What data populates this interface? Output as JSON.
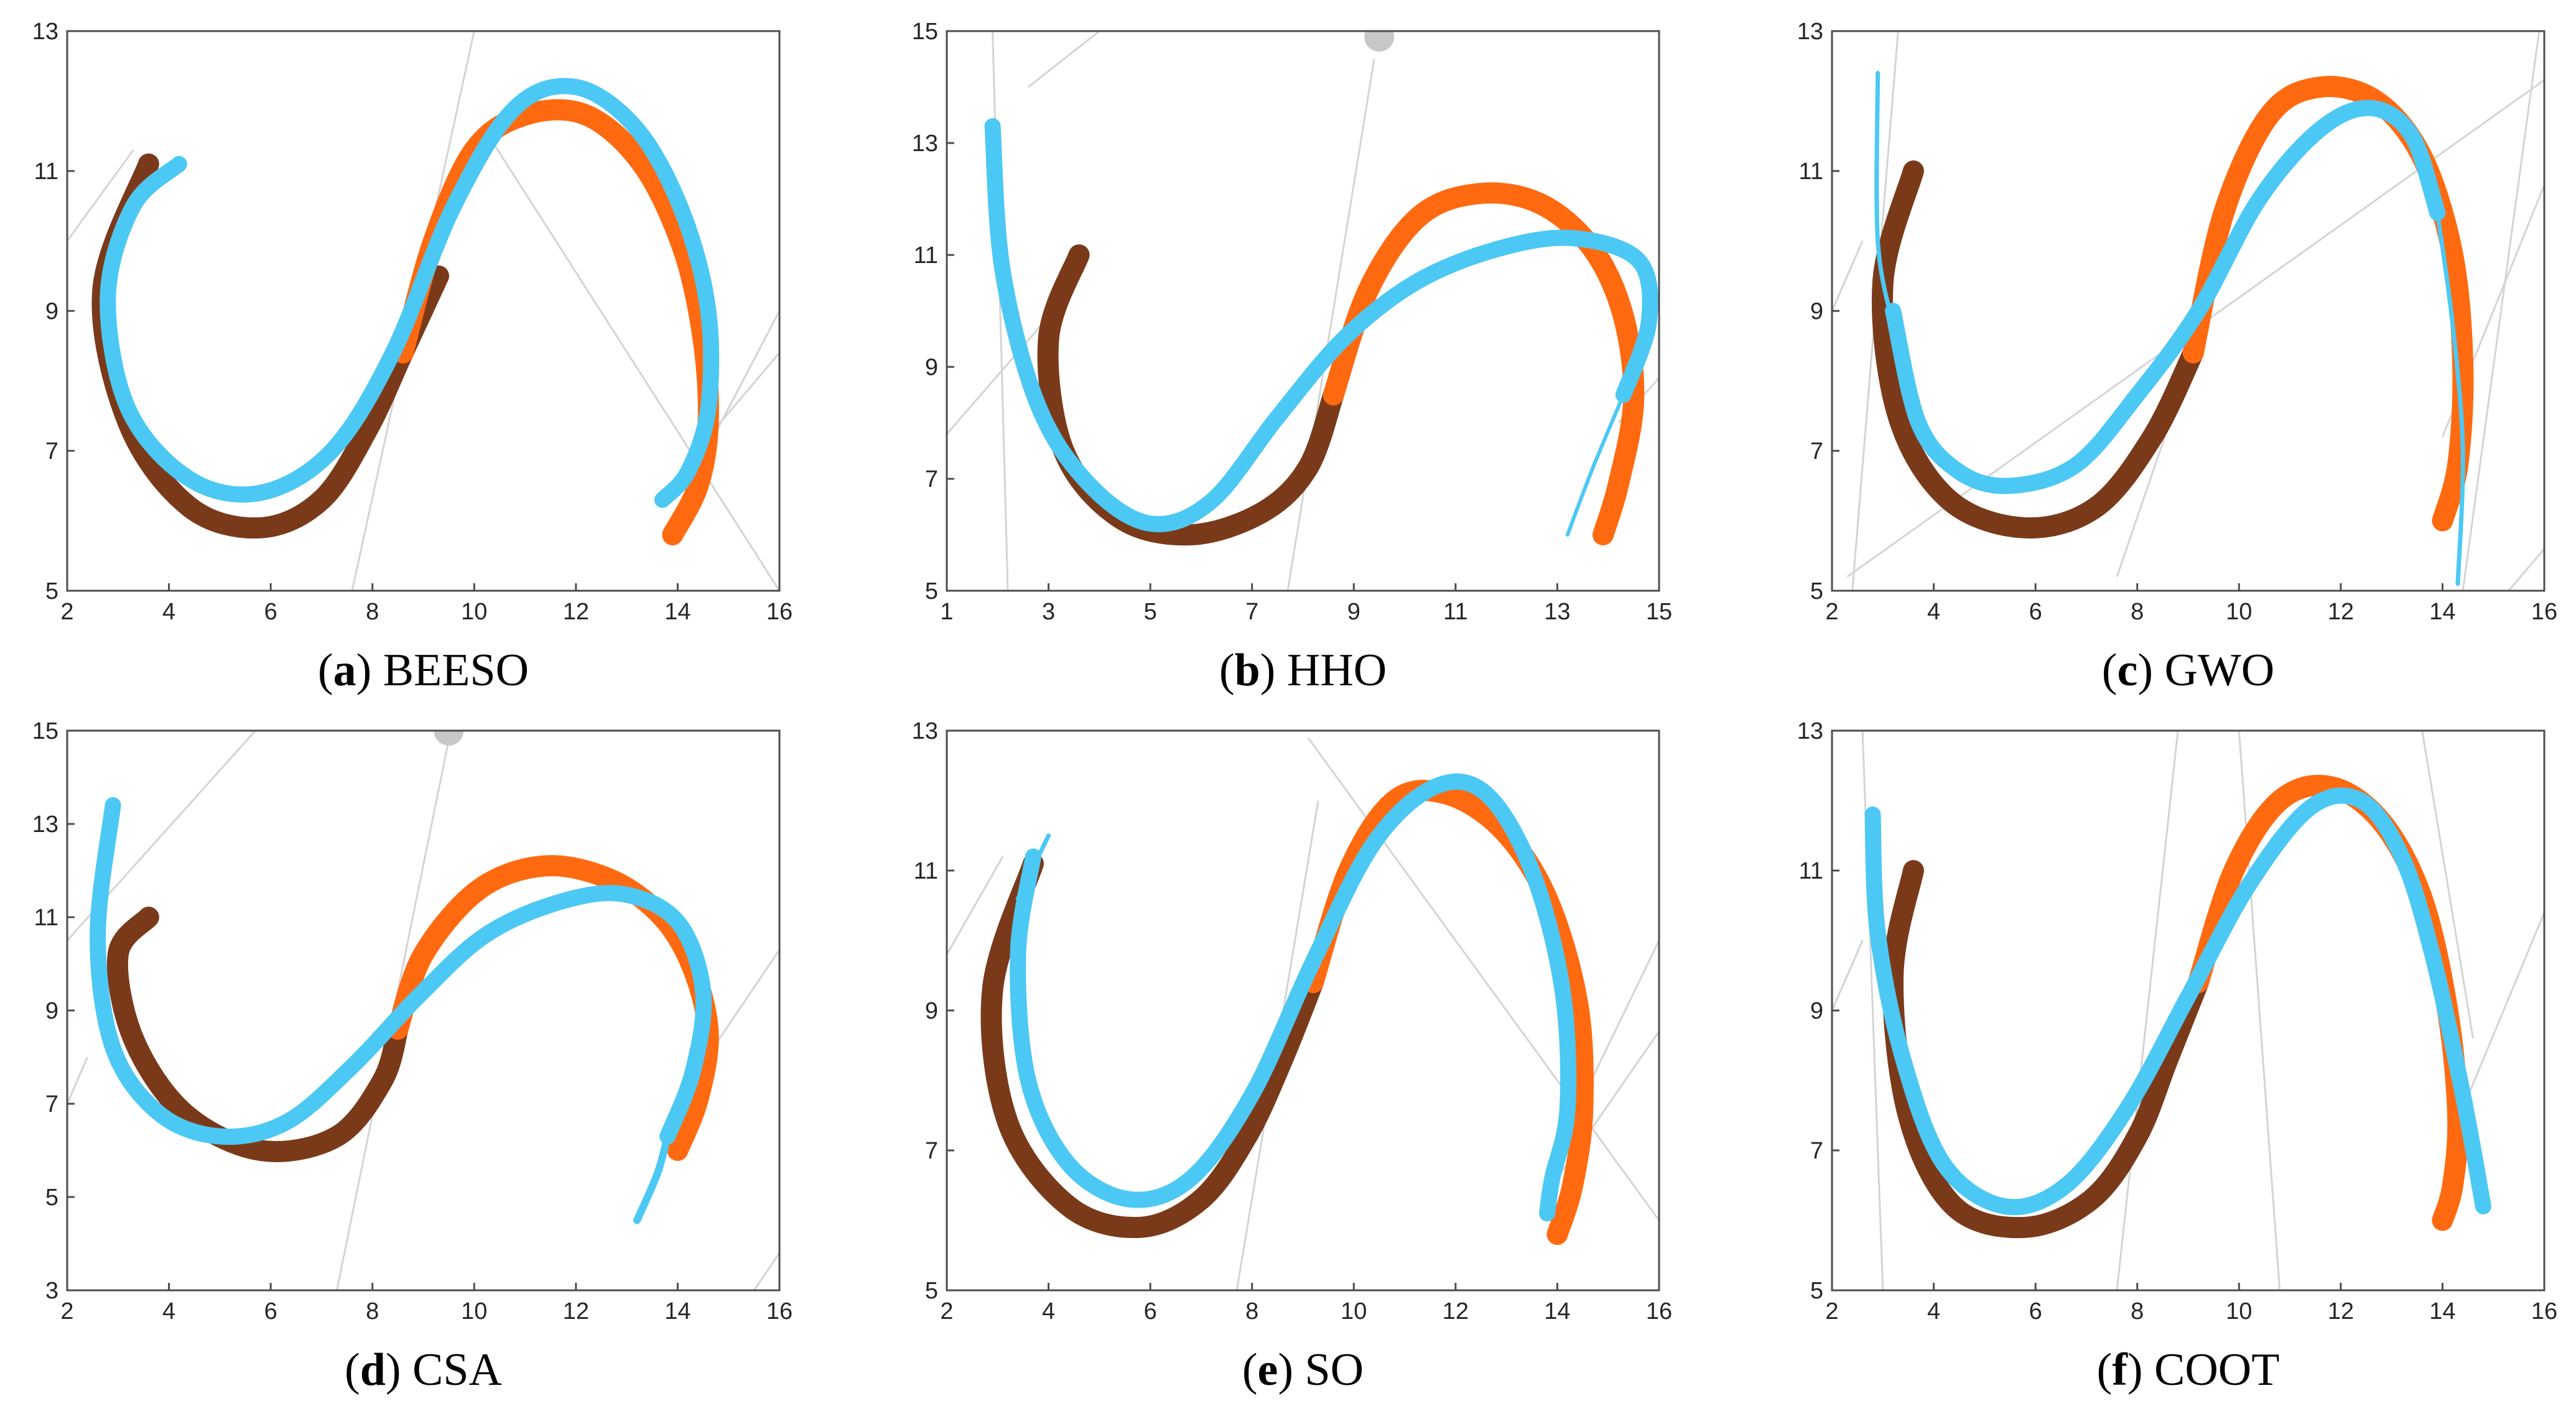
{
  "figure": {
    "colors": {
      "reference_dark": "#7a3a1a",
      "reference_light": "#ff6a10",
      "result": "#4cc8f4",
      "grey_lines": "#d4d4d4",
      "frame": "#4d4d4d"
    }
  },
  "chart_data": [
    {
      "id": "a",
      "type": "line",
      "caption_letter": "a",
      "caption_text": "BEESO",
      "xlim": [
        2,
        16
      ],
      "ylim": [
        5,
        13
      ],
      "xticks": [
        2,
        4,
        6,
        8,
        10,
        12,
        14,
        16
      ],
      "yticks": [
        5,
        7,
        9,
        11,
        13
      ],
      "series": [
        {
          "name": "reference-dark",
          "x": [
            3.6,
            2.7,
            3.2,
            4.4,
            5.8,
            7.0,
            7.9,
            8.6,
            9.3
          ],
          "y": [
            11.1,
            9.3,
            7.4,
            6.2,
            5.9,
            6.3,
            7.3,
            8.4,
            9.5
          ]
        },
        {
          "name": "reference-light",
          "x": [
            8.6,
            9.2,
            10.0,
            11.0,
            12.2,
            13.3,
            14.1,
            14.5,
            14.6,
            14.4,
            13.9
          ],
          "y": [
            8.4,
            10.0,
            11.3,
            11.8,
            11.8,
            11.1,
            9.9,
            8.6,
            7.4,
            6.5,
            5.8
          ]
        },
        {
          "name": "result",
          "x": [
            4.2,
            3.3,
            2.8,
            3.2,
            4.4,
            5.8,
            7.2,
            8.4,
            9.6,
            10.8,
            12.0,
            13.2,
            14.1,
            14.6,
            14.6,
            14.2,
            13.7
          ],
          "y": [
            11.1,
            10.5,
            9.2,
            7.6,
            6.6,
            6.4,
            7.0,
            8.4,
            10.5,
            11.9,
            12.2,
            11.6,
            10.4,
            9.0,
            7.6,
            6.7,
            6.3
          ],
          "width": 26
        }
      ],
      "grey_lines": [
        [
          [
            2,
            10.0
          ],
          [
            3.3,
            11.3
          ]
        ],
        [
          [
            7.6,
            5
          ],
          [
            10.0,
            13
          ]
        ],
        [
          [
            10.2,
            11.6
          ],
          [
            16,
            5.0
          ]
        ],
        [
          [
            14.2,
            6.5
          ],
          [
            16,
            9.0
          ]
        ],
        [
          [
            14.6,
            7.2
          ],
          [
            16,
            8.4
          ]
        ]
      ]
    },
    {
      "id": "b",
      "type": "line",
      "caption_letter": "b",
      "caption_text": "HHO",
      "xlim": [
        1,
        15
      ],
      "ylim": [
        5,
        15
      ],
      "xticks": [
        1,
        3,
        5,
        7,
        9,
        11,
        13,
        15
      ],
      "yticks": [
        5,
        7,
        9,
        11,
        13,
        15
      ],
      "series": [
        {
          "name": "reference-dark",
          "x": [
            3.6,
            3.0,
            3.3,
            4.4,
            5.8,
            7.2,
            8.1,
            8.6
          ],
          "y": [
            11.0,
            9.5,
            7.5,
            6.3,
            6.0,
            6.4,
            7.2,
            8.5
          ]
        },
        {
          "name": "reference-light",
          "x": [
            8.6,
            9.3,
            10.3,
            11.5,
            12.7,
            13.7,
            14.3,
            14.5,
            14.2,
            13.9
          ],
          "y": [
            8.5,
            10.4,
            11.7,
            12.1,
            11.9,
            11.1,
            9.9,
            8.4,
            6.9,
            6.0
          ]
        },
        {
          "name": "result",
          "x": [
            1.9,
            2.1,
            2.8,
            3.8,
            5.0,
            6.2,
            7.5,
            8.8,
            10.2,
            11.8,
            13.3,
            14.6,
            14.8,
            14.3
          ],
          "y": [
            13.3,
            10.7,
            8.3,
            6.9,
            6.2,
            6.6,
            8.1,
            9.5,
            10.5,
            11.1,
            11.3,
            10.9,
            9.8,
            8.5
          ],
          "width": 26
        },
        {
          "name": "result-tail",
          "x": [
            14.3,
            13.7,
            13.2
          ],
          "y": [
            8.5,
            7.2,
            6.0
          ],
          "width": 6
        }
      ],
      "grey_lines": [
        [
          [
            1,
            7.8
          ],
          [
            3.1,
            10.0
          ]
        ],
        [
          [
            1.9,
            15
          ],
          [
            2.2,
            5
          ]
        ],
        [
          [
            7.7,
            5
          ],
          [
            9.4,
            14.5
          ]
        ],
        [
          [
            2.6,
            14.0
          ],
          [
            4.0,
            15
          ]
        ],
        [
          [
            14.2,
            8.0
          ],
          [
            15,
            8.8
          ]
        ]
      ],
      "markers": [
        {
          "x": 9.5,
          "y": 14.9
        }
      ]
    },
    {
      "id": "c",
      "type": "line",
      "caption_letter": "c",
      "caption_text": "GWO",
      "xlim": [
        2,
        16
      ],
      "ylim": [
        5,
        13
      ],
      "xticks": [
        2,
        4,
        6,
        8,
        10,
        12,
        14,
        16
      ],
      "yticks": [
        5,
        7,
        9,
        11,
        13
      ],
      "series": [
        {
          "name": "reference-dark",
          "x": [
            3.6,
            3.0,
            3.3,
            4.3,
            5.8,
            7.2,
            8.3,
            9.1
          ],
          "y": [
            11.0,
            9.4,
            7.5,
            6.3,
            5.9,
            6.2,
            7.2,
            8.4
          ]
        },
        {
          "name": "reference-light",
          "x": [
            9.1,
            9.7,
            10.6,
            11.6,
            12.7,
            13.6,
            14.2,
            14.4,
            14.3,
            14.0
          ],
          "y": [
            8.4,
            10.4,
            11.8,
            12.2,
            12.0,
            11.2,
            9.8,
            8.2,
            6.8,
            6.0
          ]
        },
        {
          "name": "result",
          "x": [
            3.2,
            3.7,
            4.5,
            5.5,
            6.8,
            8.0,
            9.2,
            10.4,
            11.6,
            12.6,
            13.4,
            13.9
          ],
          "y": [
            9.0,
            7.4,
            6.7,
            6.5,
            6.8,
            7.8,
            9.0,
            10.6,
            11.6,
            11.9,
            11.5,
            10.4
          ],
          "width": 26
        },
        {
          "name": "result-tail-left",
          "x": [
            2.9,
            2.9,
            3.2
          ],
          "y": [
            12.4,
            10.0,
            8.8
          ],
          "width": 7
        },
        {
          "name": "result-tail-right",
          "x": [
            13.9,
            14.2,
            14.4,
            14.3
          ],
          "y": [
            10.4,
            8.8,
            7.0,
            5.1
          ],
          "width": 7
        }
      ],
      "grey_lines": [
        [
          [
            2,
            9.0
          ],
          [
            2.6,
            10.0
          ]
        ],
        [
          [
            2.3,
            5.2
          ],
          [
            16,
            12.3
          ]
        ],
        [
          [
            2.4,
            5.0
          ],
          [
            3.3,
            13
          ]
        ],
        [
          [
            7.6,
            5.2
          ],
          [
            9.2,
            8.6
          ]
        ],
        [
          [
            14.4,
            5.0
          ],
          [
            15.9,
            13
          ]
        ],
        [
          [
            14.0,
            7.2
          ],
          [
            16,
            10.8
          ]
        ],
        [
          [
            15.3,
            5
          ],
          [
            16,
            5.6
          ]
        ]
      ]
    },
    {
      "id": "d",
      "type": "line",
      "caption_letter": "d",
      "caption_text": "CSA",
      "xlim": [
        2,
        16
      ],
      "ylim": [
        3,
        15
      ],
      "xticks": [
        2,
        4,
        6,
        8,
        10,
        12,
        14,
        16
      ],
      "yticks": [
        3,
        5,
        7,
        9,
        11,
        13,
        15
      ],
      "series": [
        {
          "name": "reference-dark",
          "x": [
            3.6,
            3.0,
            3.3,
            4.3,
            5.8,
            7.3,
            8.2,
            8.5
          ],
          "y": [
            11.0,
            10.2,
            8.4,
            6.8,
            6.0,
            6.3,
            7.5,
            8.6
          ]
        },
        {
          "name": "reference-light",
          "x": [
            8.5,
            9.0,
            10.1,
            11.4,
            12.7,
            13.7,
            14.3,
            14.6,
            14.4,
            14.0
          ],
          "y": [
            8.6,
            10.2,
            11.6,
            12.1,
            11.8,
            11.0,
            9.9,
            8.5,
            7.1,
            6.0
          ]
        },
        {
          "name": "result",
          "x": [
            2.9,
            2.6,
            2.9,
            3.8,
            5.0,
            6.3,
            7.6,
            8.9,
            10.2,
            11.6,
            12.9,
            14.0,
            14.5,
            14.3,
            13.8
          ],
          "y": [
            13.4,
            10.6,
            8.2,
            6.8,
            6.3,
            6.6,
            7.8,
            9.3,
            10.6,
            11.3,
            11.5,
            10.9,
            9.4,
            7.7,
            6.3
          ],
          "width": 26
        },
        {
          "name": "result-tail",
          "x": [
            13.8,
            13.6,
            13.2
          ],
          "y": [
            6.3,
            5.5,
            4.5
          ],
          "width": 12
        }
      ],
      "grey_lines": [
        [
          [
            2,
            10.5
          ],
          [
            5.7,
            15
          ]
        ],
        [
          [
            7.3,
            3
          ],
          [
            9.5,
            14.8
          ]
        ],
        [
          [
            2,
            7.0
          ],
          [
            2.4,
            8.0
          ]
        ],
        [
          [
            14.7,
            8.2
          ],
          [
            16,
            10.3
          ]
        ],
        [
          [
            15.5,
            3
          ],
          [
            16,
            3.8
          ]
        ]
      ],
      "markers": [
        {
          "x": 9.5,
          "y": 15.0
        }
      ]
    },
    {
      "id": "e",
      "type": "line",
      "caption_letter": "e",
      "caption_text": "SO",
      "xlim": [
        2,
        16
      ],
      "ylim": [
        5,
        13
      ],
      "xticks": [
        2,
        4,
        6,
        8,
        10,
        12,
        14,
        16
      ],
      "yticks": [
        5,
        7,
        9,
        11,
        13
      ],
      "series": [
        {
          "name": "reference-dark",
          "x": [
            3.7,
            2.9,
            3.2,
            4.4,
            5.8,
            7.0,
            7.9,
            8.6,
            9.2
          ],
          "y": [
            11.1,
            9.3,
            7.4,
            6.2,
            5.9,
            6.3,
            7.2,
            8.3,
            9.4
          ]
        },
        {
          "name": "reference-light",
          "x": [
            9.2,
            9.9,
            10.8,
            11.8,
            12.9,
            13.8,
            14.4,
            14.5,
            14.3,
            14.0
          ],
          "y": [
            9.4,
            11.0,
            12.0,
            12.1,
            11.6,
            10.6,
            9.1,
            7.6,
            6.5,
            5.8
          ]
        },
        {
          "name": "result",
          "x": [
            3.7,
            3.4,
            3.6,
            4.4,
            5.6,
            6.8,
            8.0,
            9.2,
            10.4,
            11.6,
            12.6,
            13.5,
            14.1,
            14.2,
            13.9,
            13.8
          ],
          "y": [
            11.2,
            9.8,
            8.0,
            6.8,
            6.3,
            6.6,
            7.8,
            9.7,
            11.4,
            12.2,
            12.1,
            11.0,
            9.3,
            7.6,
            6.6,
            6.1
          ],
          "width": 26
        },
        {
          "name": "result-tail",
          "x": [
            3.4,
            3.8,
            4.0
          ],
          "y": [
            10.6,
            11.2,
            11.5
          ],
          "width": 7
        }
      ],
      "grey_lines": [
        [
          [
            2,
            9.8
          ],
          [
            3.1,
            11.2
          ]
        ],
        [
          [
            7.7,
            5
          ],
          [
            9.3,
            12.0
          ]
        ],
        [
          [
            9.1,
            12.9
          ],
          [
            16,
            6.0
          ]
        ],
        [
          [
            13.9,
            6.5
          ],
          [
            16,
            8.7
          ]
        ],
        [
          [
            14.4,
            7.6
          ],
          [
            16,
            10.0
          ]
        ]
      ]
    },
    {
      "id": "f",
      "type": "line",
      "caption_letter": "f",
      "caption_text": "COOT",
      "xlim": [
        2,
        16
      ],
      "ylim": [
        5,
        13
      ],
      "xticks": [
        2,
        4,
        6,
        8,
        10,
        12,
        14,
        16
      ],
      "yticks": [
        5,
        7,
        9,
        11,
        13
      ],
      "series": [
        {
          "name": "reference-dark",
          "x": [
            3.6,
            3.2,
            3.5,
            4.4,
            5.8,
            7.1,
            8.0,
            8.6,
            9.2
          ],
          "y": [
            11.0,
            9.5,
            7.5,
            6.2,
            5.9,
            6.3,
            7.2,
            8.3,
            9.4
          ]
        },
        {
          "name": "reference-light",
          "x": [
            9.2,
            9.9,
            10.8,
            11.8,
            12.8,
            13.6,
            14.1,
            14.3,
            14.2,
            14.0
          ],
          "y": [
            9.4,
            11.0,
            12.0,
            12.2,
            11.7,
            10.6,
            9.0,
            7.5,
            6.5,
            6.0
          ]
        },
        {
          "name": "result",
          "x": [
            2.8,
            2.9,
            3.4,
            4.2,
            5.4,
            6.6,
            7.8,
            9.0,
            10.2,
            11.4,
            12.4,
            13.2,
            13.8,
            14.4,
            14.8
          ],
          "y": [
            11.8,
            10.1,
            8.3,
            6.8,
            6.2,
            6.5,
            7.6,
            9.2,
            10.8,
            11.9,
            12.0,
            11.2,
            9.8,
            7.8,
            6.2
          ],
          "width": 26
        }
      ],
      "grey_lines": [
        [
          [
            2,
            9.0
          ],
          [
            2.6,
            10.0
          ]
        ],
        [
          [
            3.0,
            5.0
          ],
          [
            2.6,
            13
          ]
        ],
        [
          [
            7.6,
            5.0
          ],
          [
            8.8,
            13
          ]
        ],
        [
          [
            10.0,
            13
          ],
          [
            10.8,
            5.0
          ]
        ],
        [
          [
            13.6,
            13
          ],
          [
            14.6,
            8.6
          ]
        ],
        [
          [
            14.4,
            7.6
          ],
          [
            16,
            10.4
          ]
        ]
      ]
    }
  ]
}
